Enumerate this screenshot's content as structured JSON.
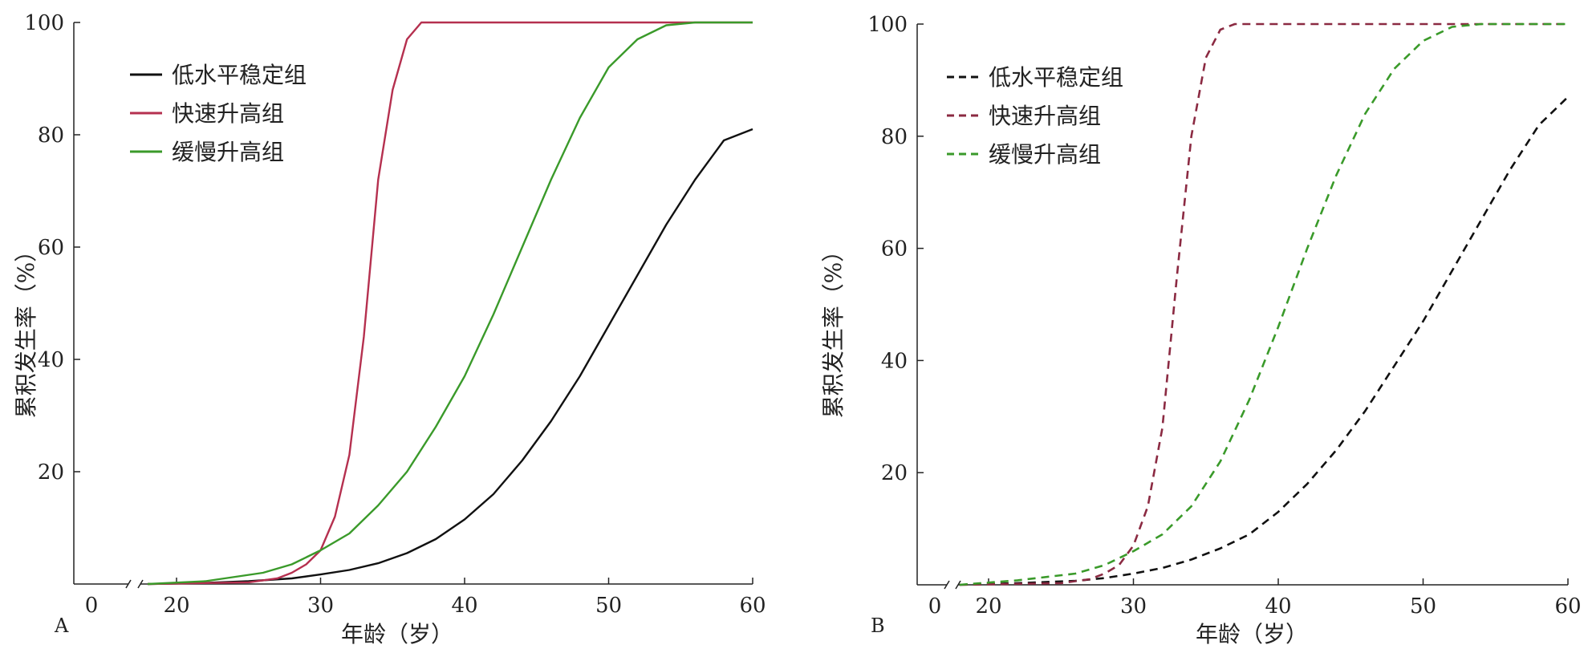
{
  "chart_data": [
    {
      "panel": "A",
      "type": "line",
      "line_style": "solid",
      "title": "",
      "xlabel": "年龄（岁）",
      "ylabel": "累积发生率（%）",
      "xlim": [
        0,
        60
      ],
      "ylim": [
        0,
        100
      ],
      "x_axis_break": true,
      "x_ticks": [
        "0",
        "20",
        "30",
        "40",
        "50",
        "60"
      ],
      "y_ticks": [
        "20",
        "40",
        "60",
        "80",
        "100"
      ],
      "grid": false,
      "legend_position": "top-left",
      "series": [
        {
          "name": "低水平稳定组",
          "color": "#111111",
          "x": [
            18,
            22,
            25,
            28,
            30,
            32,
            34,
            36,
            38,
            40,
            42,
            44,
            46,
            48,
            50,
            52,
            54,
            56,
            58,
            60
          ],
          "y": [
            0,
            0.2,
            0.5,
            1,
            1.7,
            2.5,
            3.7,
            5.5,
            8,
            11.5,
            16,
            22,
            29,
            37,
            46,
            55,
            64,
            72,
            79,
            81
          ]
        },
        {
          "name": "快速升高组",
          "color": "#b5304f",
          "x": [
            18,
            25,
            27,
            28,
            29,
            30,
            31,
            32,
            33,
            34,
            35,
            36,
            37,
            38,
            60
          ],
          "y": [
            0,
            0.3,
            1,
            2,
            3.5,
            6,
            12,
            23,
            44,
            72,
            88,
            97,
            100,
            100,
            100
          ]
        },
        {
          "name": "缓慢升高组",
          "color": "#3a9a2a",
          "x": [
            18,
            22,
            26,
            28,
            30,
            32,
            34,
            36,
            38,
            40,
            42,
            44,
            46,
            48,
            50,
            52,
            54,
            56,
            60
          ],
          "y": [
            0,
            0.5,
            2,
            3.5,
            6,
            9,
            14,
            20,
            28,
            37,
            48,
            60,
            72,
            83,
            92,
            97,
            99.5,
            100,
            100
          ]
        }
      ]
    },
    {
      "panel": "B",
      "type": "line",
      "line_style": "dashed",
      "title": "",
      "xlabel": "年龄（岁）",
      "ylabel": "累积发生率（%）",
      "xlim": [
        0,
        60
      ],
      "ylim": [
        0,
        100
      ],
      "x_axis_break": true,
      "x_ticks": [
        "0",
        "20",
        "30",
        "40",
        "50",
        "60"
      ],
      "y_ticks": [
        "20",
        "40",
        "60",
        "80",
        "100"
      ],
      "grid": false,
      "legend_position": "top-left",
      "series": [
        {
          "name": "低水平稳定组",
          "color": "#111111",
          "x": [
            18,
            22,
            26,
            28,
            30,
            32,
            34,
            36,
            38,
            40,
            42,
            44,
            46,
            48,
            50,
            52,
            54,
            56,
            58,
            60
          ],
          "y": [
            0,
            0.3,
            0.7,
            1.2,
            2,
            3,
            4.5,
            6.5,
            9,
            13,
            18,
            24,
            31,
            39,
            47,
            56,
            65,
            74,
            82,
            87
          ]
        },
        {
          "name": "快速升高组",
          "color": "#8b2a42",
          "x": [
            18,
            25,
            27,
            28,
            29,
            30,
            31,
            32,
            33,
            34,
            35,
            36,
            37,
            38,
            60
          ],
          "y": [
            0,
            0.3,
            1,
            2,
            3.5,
            7,
            14,
            28,
            55,
            80,
            94,
            99,
            100,
            100,
            100
          ]
        },
        {
          "name": "缓慢升高组",
          "color": "#3a9a2a",
          "x": [
            18,
            22,
            26,
            28,
            30,
            32,
            34,
            36,
            38,
            40,
            42,
            44,
            46,
            48,
            50,
            52,
            54,
            56,
            60
          ],
          "y": [
            0,
            0.8,
            2,
            3.5,
            6,
            9,
            14,
            22,
            33,
            46,
            60,
            73,
            84,
            92,
            97,
            99.5,
            100,
            100,
            100
          ]
        }
      ]
    }
  ]
}
